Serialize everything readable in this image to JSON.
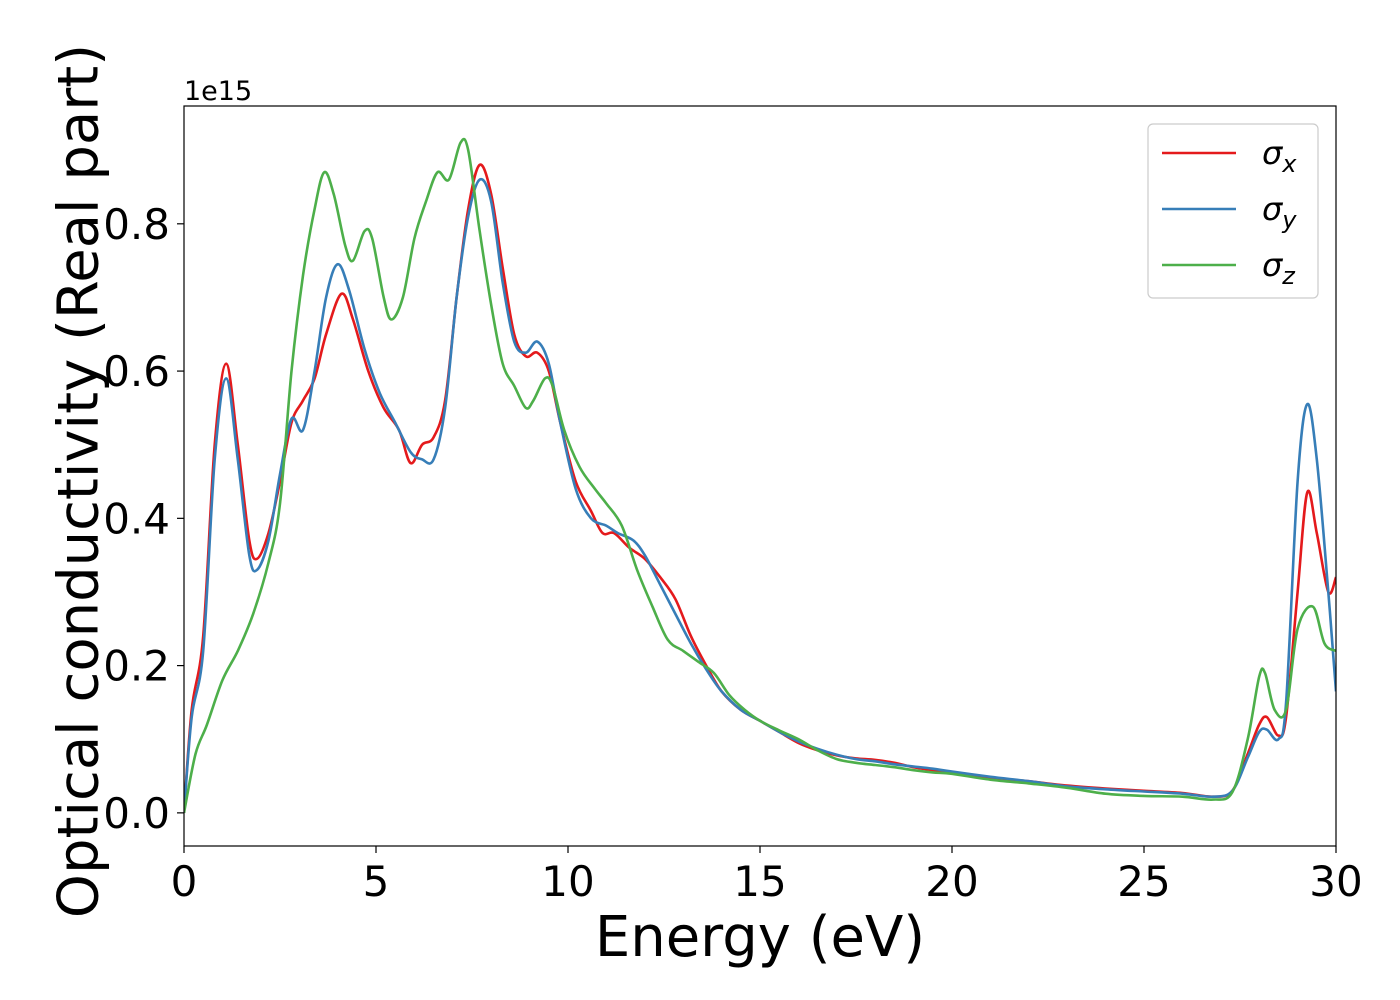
{
  "chart_data": {
    "type": "line",
    "title": "",
    "xlabel": "Energy (eV)",
    "ylabel": "Optical conductivity (Real part)",
    "y_offset_label": "1e15",
    "xlim": [
      0,
      30
    ],
    "ylim": [
      -0.045,
      0.96
    ],
    "x_ticks": [
      0,
      5,
      10,
      15,
      20,
      25,
      30
    ],
    "x_tick_labels": [
      "0",
      "5",
      "10",
      "15",
      "20",
      "25",
      "30"
    ],
    "y_ticks": [
      0.0,
      0.2,
      0.4,
      0.6,
      0.8
    ],
    "y_tick_labels": [
      "0.0",
      "0.2",
      "0.4",
      "0.6",
      "0.8"
    ],
    "grid": false,
    "legend_position": "top-right",
    "series": [
      {
        "name": "σ",
        "subscript": "x",
        "color": "#e41a1c",
        "points": [
          [
            0,
            0
          ],
          [
            0.2,
            0.14
          ],
          [
            0.5,
            0.24
          ],
          [
            0.8,
            0.5
          ],
          [
            1.1,
            0.61
          ],
          [
            1.4,
            0.5
          ],
          [
            1.7,
            0.37
          ],
          [
            1.9,
            0.345
          ],
          [
            2.2,
            0.38
          ],
          [
            2.5,
            0.45
          ],
          [
            2.8,
            0.53
          ],
          [
            3.1,
            0.56
          ],
          [
            3.4,
            0.59
          ],
          [
            3.7,
            0.65
          ],
          [
            4.1,
            0.705
          ],
          [
            4.4,
            0.67
          ],
          [
            4.8,
            0.6
          ],
          [
            5.2,
            0.55
          ],
          [
            5.6,
            0.52
          ],
          [
            5.9,
            0.475
          ],
          [
            6.2,
            0.5
          ],
          [
            6.5,
            0.51
          ],
          [
            6.8,
            0.56
          ],
          [
            7.1,
            0.7
          ],
          [
            7.4,
            0.82
          ],
          [
            7.7,
            0.88
          ],
          [
            8.0,
            0.84
          ],
          [
            8.3,
            0.74
          ],
          [
            8.6,
            0.65
          ],
          [
            8.9,
            0.62
          ],
          [
            9.2,
            0.625
          ],
          [
            9.5,
            0.6
          ],
          [
            9.8,
            0.53
          ],
          [
            10.2,
            0.45
          ],
          [
            10.6,
            0.41
          ],
          [
            10.9,
            0.38
          ],
          [
            11.2,
            0.38
          ],
          [
            11.6,
            0.36
          ],
          [
            12.0,
            0.345
          ],
          [
            12.4,
            0.32
          ],
          [
            12.8,
            0.29
          ],
          [
            13.2,
            0.24
          ],
          [
            13.6,
            0.2
          ],
          [
            14.0,
            0.165
          ],
          [
            14.5,
            0.14
          ],
          [
            15.0,
            0.125
          ],
          [
            15.5,
            0.11
          ],
          [
            16.0,
            0.095
          ],
          [
            16.5,
            0.085
          ],
          [
            17.0,
            0.078
          ],
          [
            17.5,
            0.074
          ],
          [
            18.0,
            0.072
          ],
          [
            18.5,
            0.068
          ],
          [
            19.0,
            0.062
          ],
          [
            19.5,
            0.058
          ],
          [
            20.0,
            0.055
          ],
          [
            21.0,
            0.048
          ],
          [
            22.0,
            0.043
          ],
          [
            23.0,
            0.037
          ],
          [
            24.0,
            0.033
          ],
          [
            25.0,
            0.03
          ],
          [
            26.0,
            0.027
          ],
          [
            26.8,
            0.022
          ],
          [
            27.3,
            0.03
          ],
          [
            27.7,
            0.08
          ],
          [
            28.0,
            0.12
          ],
          [
            28.2,
            0.13
          ],
          [
            28.5,
            0.105
          ],
          [
            28.7,
            0.13
          ],
          [
            29.0,
            0.3
          ],
          [
            29.25,
            0.435
          ],
          [
            29.5,
            0.38
          ],
          [
            29.8,
            0.3
          ],
          [
            30.0,
            0.32
          ]
        ]
      },
      {
        "name": "σ",
        "subscript": "y",
        "color": "#377eb8",
        "points": [
          [
            0,
            0
          ],
          [
            0.2,
            0.13
          ],
          [
            0.5,
            0.22
          ],
          [
            0.8,
            0.48
          ],
          [
            1.1,
            0.59
          ],
          [
            1.4,
            0.48
          ],
          [
            1.7,
            0.35
          ],
          [
            1.9,
            0.33
          ],
          [
            2.2,
            0.37
          ],
          [
            2.5,
            0.46
          ],
          [
            2.8,
            0.535
          ],
          [
            3.1,
            0.52
          ],
          [
            3.4,
            0.6
          ],
          [
            3.7,
            0.7
          ],
          [
            4.0,
            0.745
          ],
          [
            4.3,
            0.71
          ],
          [
            4.7,
            0.63
          ],
          [
            5.1,
            0.57
          ],
          [
            5.5,
            0.53
          ],
          [
            5.9,
            0.49
          ],
          [
            6.2,
            0.48
          ],
          [
            6.5,
            0.48
          ],
          [
            6.8,
            0.55
          ],
          [
            7.1,
            0.7
          ],
          [
            7.4,
            0.81
          ],
          [
            7.7,
            0.86
          ],
          [
            8.0,
            0.83
          ],
          [
            8.3,
            0.72
          ],
          [
            8.6,
            0.64
          ],
          [
            8.9,
            0.625
          ],
          [
            9.2,
            0.64
          ],
          [
            9.5,
            0.61
          ],
          [
            9.8,
            0.53
          ],
          [
            10.2,
            0.44
          ],
          [
            10.6,
            0.4
          ],
          [
            11.0,
            0.39
          ],
          [
            11.3,
            0.38
          ],
          [
            11.7,
            0.37
          ],
          [
            12.0,
            0.35
          ],
          [
            12.4,
            0.31
          ],
          [
            12.8,
            0.27
          ],
          [
            13.2,
            0.23
          ],
          [
            13.6,
            0.195
          ],
          [
            14.0,
            0.165
          ],
          [
            14.5,
            0.14
          ],
          [
            15.0,
            0.125
          ],
          [
            15.5,
            0.11
          ],
          [
            16.0,
            0.097
          ],
          [
            16.5,
            0.087
          ],
          [
            17.0,
            0.079
          ],
          [
            17.5,
            0.073
          ],
          [
            18.0,
            0.07
          ],
          [
            18.5,
            0.066
          ],
          [
            19.0,
            0.063
          ],
          [
            19.5,
            0.06
          ],
          [
            20.0,
            0.056
          ],
          [
            21.0,
            0.049
          ],
          [
            22.0,
            0.043
          ],
          [
            23.0,
            0.036
          ],
          [
            24.0,
            0.032
          ],
          [
            25.0,
            0.029
          ],
          [
            26.0,
            0.026
          ],
          [
            26.8,
            0.022
          ],
          [
            27.3,
            0.03
          ],
          [
            27.7,
            0.075
          ],
          [
            28.0,
            0.11
          ],
          [
            28.2,
            0.113
          ],
          [
            28.5,
            0.1
          ],
          [
            28.7,
            0.15
          ],
          [
            29.0,
            0.45
          ],
          [
            29.25,
            0.555
          ],
          [
            29.5,
            0.48
          ],
          [
            29.8,
            0.3
          ],
          [
            30.0,
            0.165
          ]
        ]
      },
      {
        "name": "σ",
        "subscript": "z",
        "color": "#4daf4a",
        "points": [
          [
            0,
            0
          ],
          [
            0.3,
            0.08
          ],
          [
            0.6,
            0.12
          ],
          [
            1.0,
            0.18
          ],
          [
            1.4,
            0.22
          ],
          [
            1.8,
            0.27
          ],
          [
            2.2,
            0.34
          ],
          [
            2.5,
            0.42
          ],
          [
            2.8,
            0.6
          ],
          [
            3.1,
            0.73
          ],
          [
            3.4,
            0.82
          ],
          [
            3.65,
            0.87
          ],
          [
            3.9,
            0.84
          ],
          [
            4.2,
            0.77
          ],
          [
            4.4,
            0.75
          ],
          [
            4.7,
            0.79
          ],
          [
            4.9,
            0.78
          ],
          [
            5.2,
            0.7
          ],
          [
            5.4,
            0.67
          ],
          [
            5.7,
            0.7
          ],
          [
            6.0,
            0.78
          ],
          [
            6.3,
            0.83
          ],
          [
            6.6,
            0.87
          ],
          [
            6.9,
            0.86
          ],
          [
            7.2,
            0.91
          ],
          [
            7.4,
            0.9
          ],
          [
            7.7,
            0.79
          ],
          [
            8.0,
            0.69
          ],
          [
            8.3,
            0.61
          ],
          [
            8.6,
            0.58
          ],
          [
            8.9,
            0.55
          ],
          [
            9.1,
            0.56
          ],
          [
            9.4,
            0.59
          ],
          [
            9.6,
            0.58
          ],
          [
            9.9,
            0.52
          ],
          [
            10.3,
            0.47
          ],
          [
            10.7,
            0.44
          ],
          [
            11.0,
            0.42
          ],
          [
            11.4,
            0.39
          ],
          [
            11.8,
            0.33
          ],
          [
            12.2,
            0.28
          ],
          [
            12.6,
            0.235
          ],
          [
            13.0,
            0.22
          ],
          [
            13.4,
            0.205
          ],
          [
            13.8,
            0.19
          ],
          [
            14.2,
            0.16
          ],
          [
            14.6,
            0.14
          ],
          [
            15.0,
            0.125
          ],
          [
            15.5,
            0.112
          ],
          [
            16.0,
            0.1
          ],
          [
            16.5,
            0.085
          ],
          [
            17.0,
            0.073
          ],
          [
            17.5,
            0.068
          ],
          [
            18.0,
            0.065
          ],
          [
            18.5,
            0.062
          ],
          [
            19.0,
            0.058
          ],
          [
            19.5,
            0.055
          ],
          [
            20.0,
            0.053
          ],
          [
            21.0,
            0.045
          ],
          [
            22.0,
            0.04
          ],
          [
            23.0,
            0.034
          ],
          [
            24.0,
            0.026
          ],
          [
            25.0,
            0.023
          ],
          [
            26.0,
            0.022
          ],
          [
            26.8,
            0.018
          ],
          [
            27.3,
            0.028
          ],
          [
            27.7,
            0.1
          ],
          [
            28.0,
            0.185
          ],
          [
            28.15,
            0.19
          ],
          [
            28.4,
            0.14
          ],
          [
            28.7,
            0.14
          ],
          [
            29.0,
            0.25
          ],
          [
            29.4,
            0.28
          ],
          [
            29.7,
            0.23
          ],
          [
            30.0,
            0.22
          ]
        ]
      }
    ]
  }
}
